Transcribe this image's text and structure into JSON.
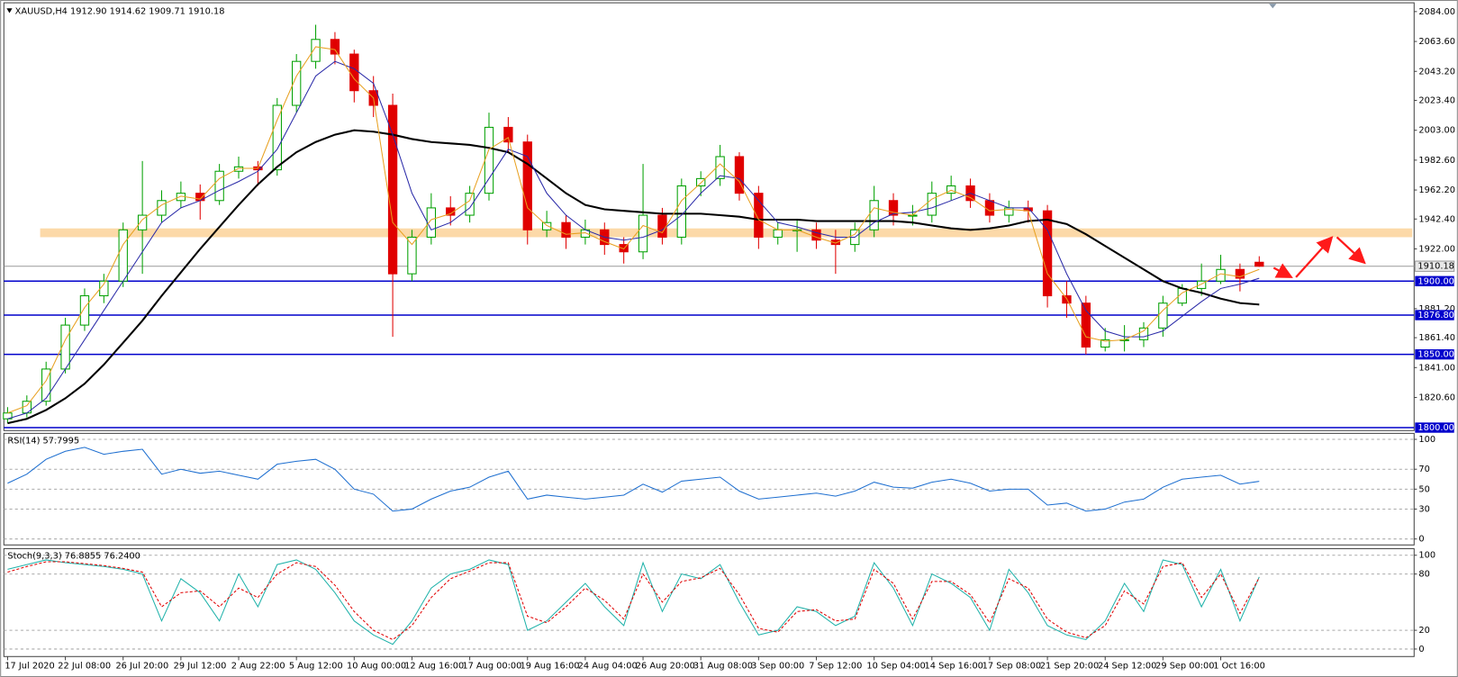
{
  "chart_data": [
    {
      "type": "candlestick",
      "title": "XAUUSD,H4  1912.90 1914.62 1909.71 1910.18",
      "categories": [
        "17 Jul 2020",
        null,
        null,
        "22 Jul 08:00",
        null,
        null,
        "26 Jul 20:00",
        null,
        null,
        "29 Jul 12:00",
        null,
        null,
        "2 Aug 22:00",
        null,
        null,
        "5 Aug 12:00",
        null,
        null,
        "10 Aug 00:00",
        null,
        null,
        "12 Aug 16:00",
        null,
        null,
        "17 Aug 00:00",
        null,
        null,
        "19 Aug 16:00",
        null,
        null,
        "24 Aug 04:00",
        null,
        null,
        "26 Aug 20:00",
        null,
        null,
        "31 Aug 08:00",
        null,
        null,
        "3 Sep 00:00",
        null,
        null,
        "7 Sep 12:00",
        null,
        null,
        "10 Sep 04:00",
        null,
        null,
        "14 Sep 16:00",
        null,
        null,
        "17 Sep 08:00",
        null,
        null,
        "21 Sep 20:00",
        null,
        null,
        "24 Sep 12:00",
        null,
        null,
        "29 Sep 00:00",
        null,
        null,
        "1 Oct 16:00",
        null,
        null
      ],
      "open": [
        1806,
        1810,
        1818,
        1840,
        1870,
        1890,
        1900,
        1935,
        1945,
        1955,
        1960,
        1955,
        1975,
        1978,
        1976,
        2020,
        2050,
        2065,
        2055,
        2030,
        2020,
        1905,
        1930,
        1950,
        1945,
        1960,
        2005,
        1995,
        1935,
        1940,
        1930,
        1935,
        1925,
        1920,
        1945,
        1930,
        1965,
        1970,
        1985,
        1960,
        1930,
        1935,
        1935,
        1928,
        1925,
        1935,
        1955,
        1945,
        1945,
        1960,
        1965,
        1955,
        1945,
        1950,
        1948,
        1890,
        1885,
        1855,
        1860,
        1860,
        1868,
        1885,
        1895,
        1900,
        1908,
        1912.9
      ],
      "high": [
        1814,
        1822,
        1845,
        1875,
        1895,
        1905,
        1940,
        1982,
        1962,
        1968,
        1966,
        1980,
        1985,
        1982,
        2025,
        2055,
        2075,
        2070,
        2058,
        2040,
        2028,
        1935,
        1960,
        1958,
        1965,
        2015,
        2012,
        2000,
        1948,
        1945,
        1942,
        1940,
        1930,
        1980,
        1950,
        1970,
        1975,
        1993,
        1988,
        1965,
        1940,
        1942,
        1940,
        1935,
        1940,
        1965,
        1960,
        1952,
        1968,
        1972,
        1970,
        1960,
        1955,
        1955,
        1952,
        1900,
        1890,
        1868,
        1870,
        1872,
        1890,
        1898,
        1912,
        1918,
        1912,
        1917
      ],
      "low": [
        1803,
        1807,
        1815,
        1837,
        1866,
        1885,
        1896,
        1905,
        1940,
        1950,
        1942,
        1952,
        1970,
        1965,
        1972,
        2015,
        2045,
        2048,
        2022,
        2012,
        1862,
        1900,
        1925,
        1938,
        1940,
        1955,
        1988,
        1925,
        1930,
        1922,
        1925,
        1918,
        1912,
        1915,
        1925,
        1925,
        1958,
        1965,
        1955,
        1922,
        1925,
        1920,
        1922,
        1905,
        1920,
        1930,
        1938,
        1938,
        1940,
        1955,
        1950,
        1940,
        1940,
        1940,
        1882,
        1875,
        1850,
        1852,
        1852,
        1855,
        1862,
        1883,
        1890,
        1898,
        1893,
        1909.71
      ],
      "close": [
        1810,
        1818,
        1840,
        1870,
        1890,
        1900,
        1935,
        1945,
        1955,
        1960,
        1955,
        1975,
        1978,
        1976,
        2020,
        2050,
        2065,
        2055,
        2030,
        2020,
        1905,
        1930,
        1950,
        1945,
        1960,
        2005,
        1995,
        1935,
        1940,
        1930,
        1935,
        1925,
        1920,
        1945,
        1930,
        1965,
        1970,
        1985,
        1960,
        1930,
        1935,
        1935,
        1928,
        1925,
        1935,
        1955,
        1945,
        1945,
        1960,
        1965,
        1955,
        1945,
        1950,
        1948,
        1890,
        1885,
        1855,
        1860,
        1860,
        1868,
        1885,
        1895,
        1900,
        1908,
        1902,
        1910.18
      ],
      "up_color": "#00a000",
      "down_color": "#e00000",
      "series": [
        {
          "color": "#000000",
          "values": [
            1803,
            1806,
            1812,
            1820,
            1830,
            1843,
            1858,
            1873,
            1890,
            1906,
            1922,
            1937,
            1952,
            1966,
            1978,
            1988,
            1995,
            2000,
            2003,
            2002,
            2000,
            1997,
            1995,
            1994,
            1993,
            1991,
            1988,
            1980,
            1970,
            1960,
            1952,
            1949,
            1948,
            1947,
            1946,
            1946,
            1946,
            1945,
            1944,
            1942,
            1942,
            1942,
            1941,
            1941,
            1941,
            1941,
            1941,
            1940,
            1938,
            1936,
            1935,
            1936,
            1938,
            1941,
            1942,
            1939,
            1932,
            1924,
            1916,
            1908,
            1900,
            1895,
            1892,
            1888,
            1885,
            1884
          ]
        },
        {
          "color": "#2a2aa8",
          "values": [
            1806,
            1810,
            1820,
            1840,
            1860,
            1880,
            1900,
            1920,
            1940,
            1950,
            1955,
            1962,
            1968,
            1975,
            1990,
            2015,
            2040,
            2050,
            2045,
            2035,
            2000,
            1960,
            1935,
            1940,
            1950,
            1970,
            1990,
            1985,
            1960,
            1945,
            1935,
            1930,
            1928,
            1930,
            1935,
            1945,
            1960,
            1972,
            1970,
            1955,
            1940,
            1937,
            1933,
            1930,
            1930,
            1940,
            1946,
            1947,
            1950,
            1955,
            1960,
            1955,
            1950,
            1950,
            1935,
            1905,
            1880,
            1866,
            1862,
            1862,
            1866,
            1876,
            1886,
            1895,
            1898,
            1902
          ]
        },
        {
          "color": "#e8a020",
          "values": [
            1810,
            1815,
            1832,
            1860,
            1882,
            1898,
            1925,
            1942,
            1952,
            1958,
            1956,
            1970,
            1977,
            1977,
            2010,
            2040,
            2060,
            2058,
            2038,
            2025,
            1940,
            1925,
            1942,
            1946,
            1955,
            1990,
            1998,
            1950,
            1938,
            1932,
            1933,
            1927,
            1922,
            1938,
            1933,
            1955,
            1967,
            1980,
            1968,
            1942,
            1935,
            1935,
            1930,
            1926,
            1932,
            1950,
            1947,
            1945,
            1956,
            1962,
            1957,
            1948,
            1949,
            1948,
            1905,
            1888,
            1862,
            1859,
            1860,
            1866,
            1880,
            1892,
            1898,
            1905,
            1903,
            1908
          ]
        }
      ],
      "band": [
        1930,
        1936
      ],
      "band_color": "#fcd9a8",
      "levels": [
        {
          "value": 1900,
          "label": "1900.00"
        },
        {
          "value": 1876.8,
          "label": "1876.80"
        },
        {
          "value": 1850,
          "label": "1850.00"
        },
        {
          "value": 1800,
          "label": "1800.00"
        }
      ],
      "level_color": "#0000cc",
      "current_price": {
        "value": 1910.18,
        "label": "1910.18"
      },
      "ylim": [
        1798,
        2090
      ],
      "yticks": [
        {
          "value": 2084,
          "label": "2084.00"
        },
        {
          "value": 2063.6,
          "label": "2063.60"
        },
        {
          "value": 2043.2,
          "label": "2043.20"
        },
        {
          "value": 2023.4,
          "label": "2023.40"
        },
        {
          "value": 2003,
          "label": "2003.00"
        },
        {
          "value": 1982.6,
          "label": "1982.60"
        },
        {
          "value": 1962.2,
          "label": "1962.20"
        },
        {
          "value": 1942.4,
          "label": "1942.40"
        },
        {
          "value": 1922,
          "label": "1922.00"
        },
        {
          "value": 1881.2,
          "label": "1881.20"
        },
        {
          "value": 1861.4,
          "label": "1861.40"
        },
        {
          "value": 1841,
          "label": "1841.00"
        },
        {
          "value": 1820.6,
          "label": "1820.60"
        }
      ]
    },
    {
      "type": "line",
      "title": "RSI(14) 57.7995",
      "ylim": [
        -6,
        106
      ],
      "yticks": [
        100,
        70,
        50,
        30,
        0
      ],
      "grid": true,
      "series": [
        {
          "color": "#1e6fd0",
          "values": [
            56,
            65,
            80,
            88,
            92,
            85,
            88,
            90,
            65,
            70,
            66,
            68,
            64,
            60,
            75,
            78,
            80,
            70,
            50,
            45,
            28,
            30,
            40,
            48,
            52,
            62,
            68,
            40,
            44,
            42,
            40,
            42,
            44,
            55,
            47,
            58,
            60,
            62,
            48,
            40,
            42,
            44,
            46,
            43,
            48,
            57,
            52,
            51,
            57,
            60,
            56,
            48,
            50,
            50,
            34,
            36,
            28,
            30,
            37,
            40,
            52,
            60,
            62,
            64,
            55,
            57.7995
          ]
        }
      ]
    },
    {
      "type": "line",
      "title": "Stoch(9,3,3) 76.8855 76.2400",
      "ylim": [
        -8,
        107
      ],
      "yticks": [
        100,
        80,
        20,
        0
      ],
      "grid": true,
      "series": [
        {
          "color": "#20b2aa",
          "values": [
            85,
            90,
            95,
            92,
            90,
            88,
            85,
            80,
            30,
            75,
            60,
            30,
            80,
            45,
            90,
            95,
            85,
            60,
            30,
            15,
            5,
            30,
            65,
            80,
            85,
            95,
            90,
            20,
            30,
            50,
            70,
            45,
            25,
            92,
            40,
            80,
            75,
            90,
            50,
            15,
            20,
            45,
            40,
            25,
            35,
            92,
            65,
            25,
            80,
            70,
            55,
            20,
            85,
            60,
            25,
            15,
            10,
            30,
            70,
            40,
            95,
            90,
            45,
            85,
            30,
            76.8855
          ]
        },
        {
          "color": "#e00000",
          "dashed": true,
          "values": [
            82,
            88,
            93,
            93,
            91,
            89,
            86,
            82,
            45,
            60,
            62,
            45,
            65,
            55,
            80,
            92,
            88,
            68,
            40,
            20,
            10,
            25,
            55,
            75,
            83,
            92,
            92,
            35,
            28,
            45,
            65,
            52,
            32,
            80,
            50,
            72,
            76,
            86,
            58,
            22,
            18,
            40,
            42,
            30,
            32,
            85,
            70,
            32,
            72,
            72,
            58,
            28,
            75,
            65,
            32,
            18,
            12,
            25,
            62,
            48,
            88,
            92,
            55,
            80,
            38,
            76.24
          ]
        }
      ]
    }
  ]
}
